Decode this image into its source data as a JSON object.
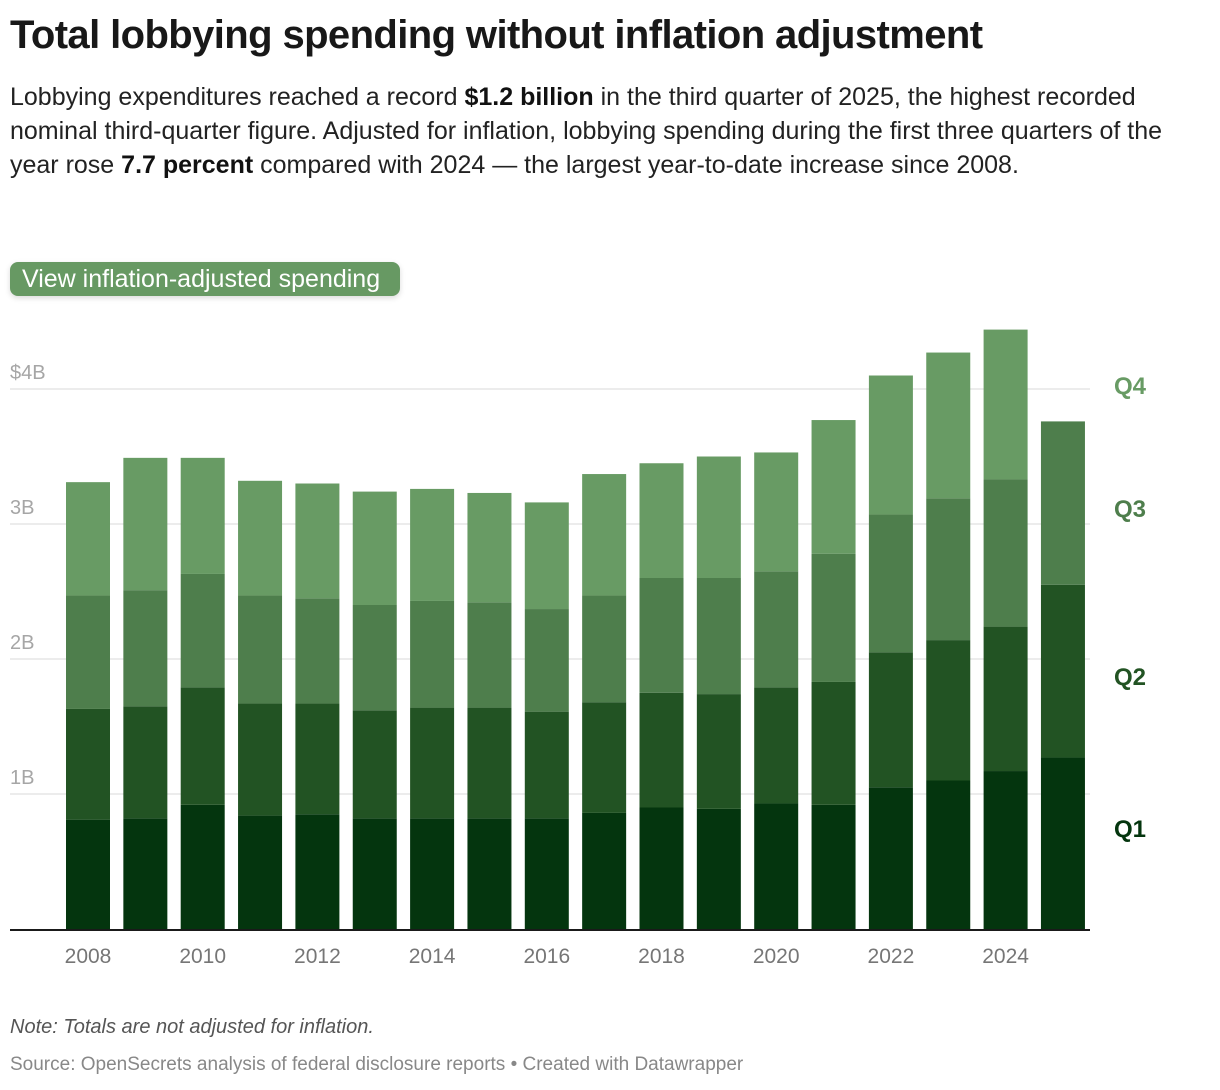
{
  "header": {
    "title": "Total lobbying spending without inflation adjustment",
    "description": {
      "part1": "Lobbying expenditures reached a record ",
      "bold1": "$1.2 billion",
      "part2": " in the third quarter of 2025, the highest recorded nominal third-quarter figure. Adjusted for inflation, lobbying spending during the first three quarters of the year rose ",
      "bold2": "7.7 percent",
      "part3": " compared with 2024 — the largest year-to-date increase since 2008."
    }
  },
  "controls": {
    "toggle_label": "View inflation-adjusted spending",
    "toggle_color": "#679963"
  },
  "footer": {
    "note": "Note: Totals are not adjusted for inflation.",
    "source": "Source: OpenSecrets analysis of federal disclosure reports • Created with Datawrapper"
  },
  "chart_data": {
    "type": "bar",
    "stacked": true,
    "title": "Total lobbying spending without inflation adjustment",
    "xlabel": "",
    "ylabel": "",
    "unit": "billions of US dollars",
    "ylim": [
      0,
      4.4
    ],
    "grid": true,
    "y_ticks": [
      {
        "value": 1,
        "label": "1B"
      },
      {
        "value": 2,
        "label": "2B"
      },
      {
        "value": 3,
        "label": "3B"
      },
      {
        "value": 4,
        "label": "$4B"
      }
    ],
    "categories": [
      "2008",
      "2009",
      "2010",
      "2011",
      "2012",
      "2013",
      "2014",
      "2015",
      "2016",
      "2017",
      "2018",
      "2019",
      "2020",
      "2021",
      "2022",
      "2023",
      "2024",
      "2025"
    ],
    "x_tick_labels": [
      "2008",
      "2010",
      "2012",
      "2014",
      "2016",
      "2018",
      "2020",
      "2022",
      "2024"
    ],
    "legend_placement": "right (direct labels)",
    "series": [
      {
        "name": "Q1",
        "color": "#04350e",
        "values": [
          0.81,
          0.82,
          0.92,
          0.84,
          0.85,
          0.82,
          0.82,
          0.82,
          0.82,
          0.86,
          0.9,
          0.89,
          0.93,
          0.92,
          1.05,
          1.1,
          1.17,
          1.27
        ]
      },
      {
        "name": "Q2",
        "color": "#225323",
        "values": [
          0.82,
          0.83,
          0.87,
          0.83,
          0.82,
          0.8,
          0.82,
          0.82,
          0.79,
          0.82,
          0.85,
          0.85,
          0.86,
          0.91,
          1.0,
          1.04,
          1.07,
          1.28
        ]
      },
      {
        "name": "Q3",
        "color": "#4e7e4c",
        "values": [
          0.84,
          0.86,
          0.84,
          0.8,
          0.78,
          0.78,
          0.79,
          0.78,
          0.76,
          0.79,
          0.85,
          0.86,
          0.86,
          0.95,
          1.02,
          1.05,
          1.09,
          1.21
        ]
      },
      {
        "name": "Q4",
        "color": "#689b64",
        "values": [
          0.84,
          0.98,
          0.86,
          0.85,
          0.85,
          0.84,
          0.83,
          0.81,
          0.79,
          0.9,
          0.85,
          0.9,
          0.88,
          0.99,
          1.03,
          1.08,
          1.11,
          null
        ]
      }
    ]
  }
}
